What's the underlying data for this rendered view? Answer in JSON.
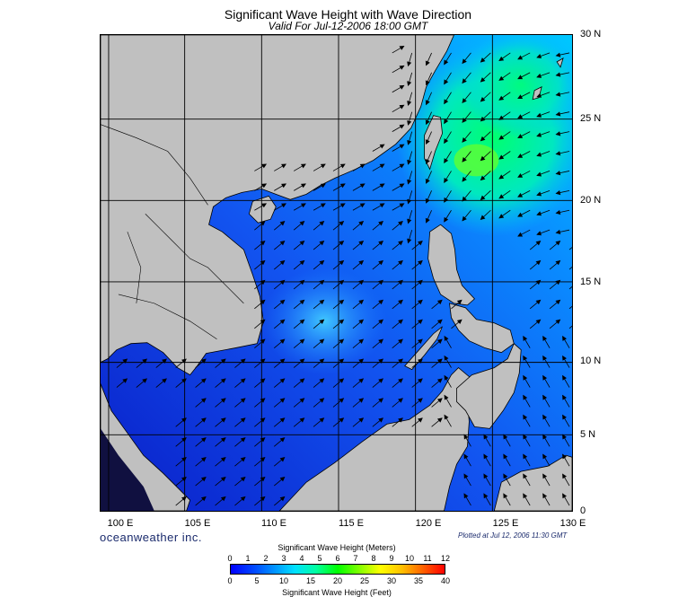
{
  "title": "Significant Wave Height with Wave Direction",
  "subtitle": "Valid For Jul-12-2006 18:00 GMT",
  "lat_labels": [
    "30 N",
    "25 N",
    "20 N",
    "15 N",
    "10 N",
    "5 N",
    "0"
  ],
  "lon_labels": [
    "100 E",
    "105 E",
    "110 E",
    "115 E",
    "120 E",
    "125 E",
    "130 E"
  ],
  "brand": "oceanweather inc.",
  "plotted": "Plotted at Jul 12, 2006 11:30 GMT",
  "colorbar": {
    "title_top": "Significant Wave Height (Meters)",
    "title_bottom": "Significant Wave Height (Feet)",
    "meters": [
      "0",
      "1",
      "2",
      "3",
      "4",
      "5",
      "6",
      "7",
      "8",
      "9",
      "10",
      "11",
      "12"
    ],
    "feet": [
      "0",
      "5",
      "10",
      "15",
      "20",
      "25",
      "30",
      "35",
      "40"
    ]
  },
  "colors": {
    "land": "#c0c0c0",
    "sea_low": "#0a2ad8",
    "sea_mid": "#0070ff",
    "sea_high": "#00ff80"
  }
}
